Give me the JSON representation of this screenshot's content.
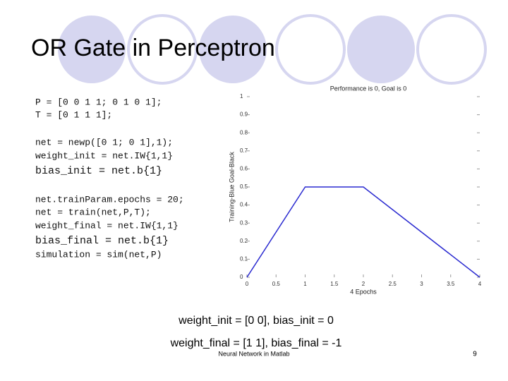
{
  "title": "OR Gate in Perceptron",
  "code": [
    {
      "text": "P = [0 0 1 1; 0 1 0 1];",
      "size": 13
    },
    {
      "text": "T = [0 1 1 1];",
      "size": 13
    },
    {
      "text": "net = newp([0 1; 0 1],1);",
      "size": 13
    },
    {
      "text": "weight_init = net.IW{1,1}",
      "size": 13
    },
    {
      "text": "bias_init = net.b{1}",
      "size": 15
    },
    {
      "text": "net.trainParam.epochs = 20;",
      "size": 13
    },
    {
      "text": "net = train(net,P,T);",
      "size": 13
    },
    {
      "text": "weight_final = net.IW{1,1}",
      "size": 13
    },
    {
      "text": "bias_final = net.b{1}",
      "size": 15
    },
    {
      "text": "simulation = sim(net,P)",
      "size": 13
    }
  ],
  "chart_data": {
    "type": "line",
    "title": "Performance is 0, Goal is 0",
    "ylabel": "Training-Blue  Goal-Black",
    "xlabel": "4 Epochs",
    "x": [
      0,
      1,
      2,
      4
    ],
    "values": [
      0,
      0.5,
      0.5,
      0
    ],
    "color": "#2a2ad0",
    "xlim": [
      0,
      4
    ],
    "xticks": [
      0,
      0.5,
      1,
      1.5,
      2,
      2.5,
      3,
      3.5,
      4
    ],
    "ylim": [
      0,
      1
    ],
    "yticks": [
      0,
      0.1,
      0.2,
      0.3,
      0.4,
      0.5,
      0.6,
      0.7,
      0.8,
      0.9,
      1
    ]
  },
  "results": [
    "weight_init = [0 0], bias_init = 0",
    "weight_final = [1 1], bias_final = -1"
  ],
  "footer": "Neural Network in Matlab",
  "page": "9"
}
